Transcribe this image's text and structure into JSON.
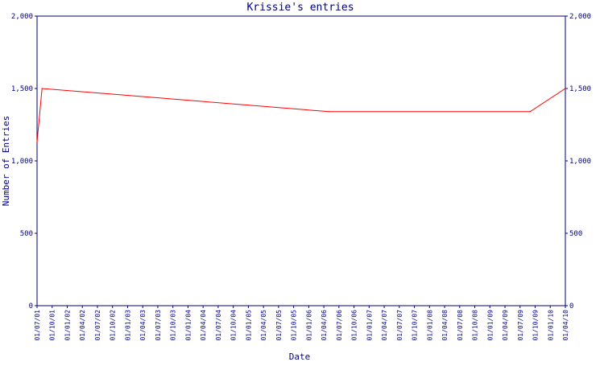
{
  "chart_data": {
    "type": "line",
    "title": "Krissie's entries",
    "xlabel": "Date",
    "ylabel": "Number of Entries",
    "ylim": [
      0,
      2000
    ],
    "y_ticks": [
      "0",
      "500",
      "1,000",
      "1,500",
      "2,000"
    ],
    "y_tick_values": [
      0,
      500,
      1000,
      1500,
      2000
    ],
    "right_axis_mirrored": true,
    "grid": false,
    "legend": "none",
    "x_tick_labels": [
      "01/07/01",
      "01/10/01",
      "01/01/02",
      "01/04/02",
      "01/07/02",
      "01/10/02",
      "01/01/03",
      "01/04/03",
      "01/07/03",
      "01/10/03",
      "01/01/04",
      "01/04/04",
      "01/07/04",
      "01/10/04",
      "01/01/05",
      "01/04/05",
      "01/07/05",
      "01/10/05",
      "01/01/06",
      "01/04/06",
      "01/07/06",
      "01/10/06",
      "01/01/07",
      "01/04/07",
      "01/07/07",
      "01/10/07",
      "01/01/08",
      "01/04/08",
      "01/07/08",
      "01/10/08",
      "01/01/09",
      "01/04/09",
      "01/07/09",
      "01/10/09",
      "01/01/10",
      "01/04/10"
    ],
    "series": [
      {
        "color": "#ff0000",
        "points": [
          {
            "x": "01/07/01",
            "y": 1130
          },
          {
            "x": "01/08/01",
            "y": 1500
          },
          {
            "x": "01/05/06",
            "y": 1340
          },
          {
            "x": "01/09/09",
            "y": 1340
          },
          {
            "x": "01/04/10",
            "y": 1500
          }
        ]
      }
    ]
  },
  "colors": {
    "axis": "#000080",
    "text": "#000080",
    "series": "#ff0000",
    "background": "#ffffff"
  }
}
